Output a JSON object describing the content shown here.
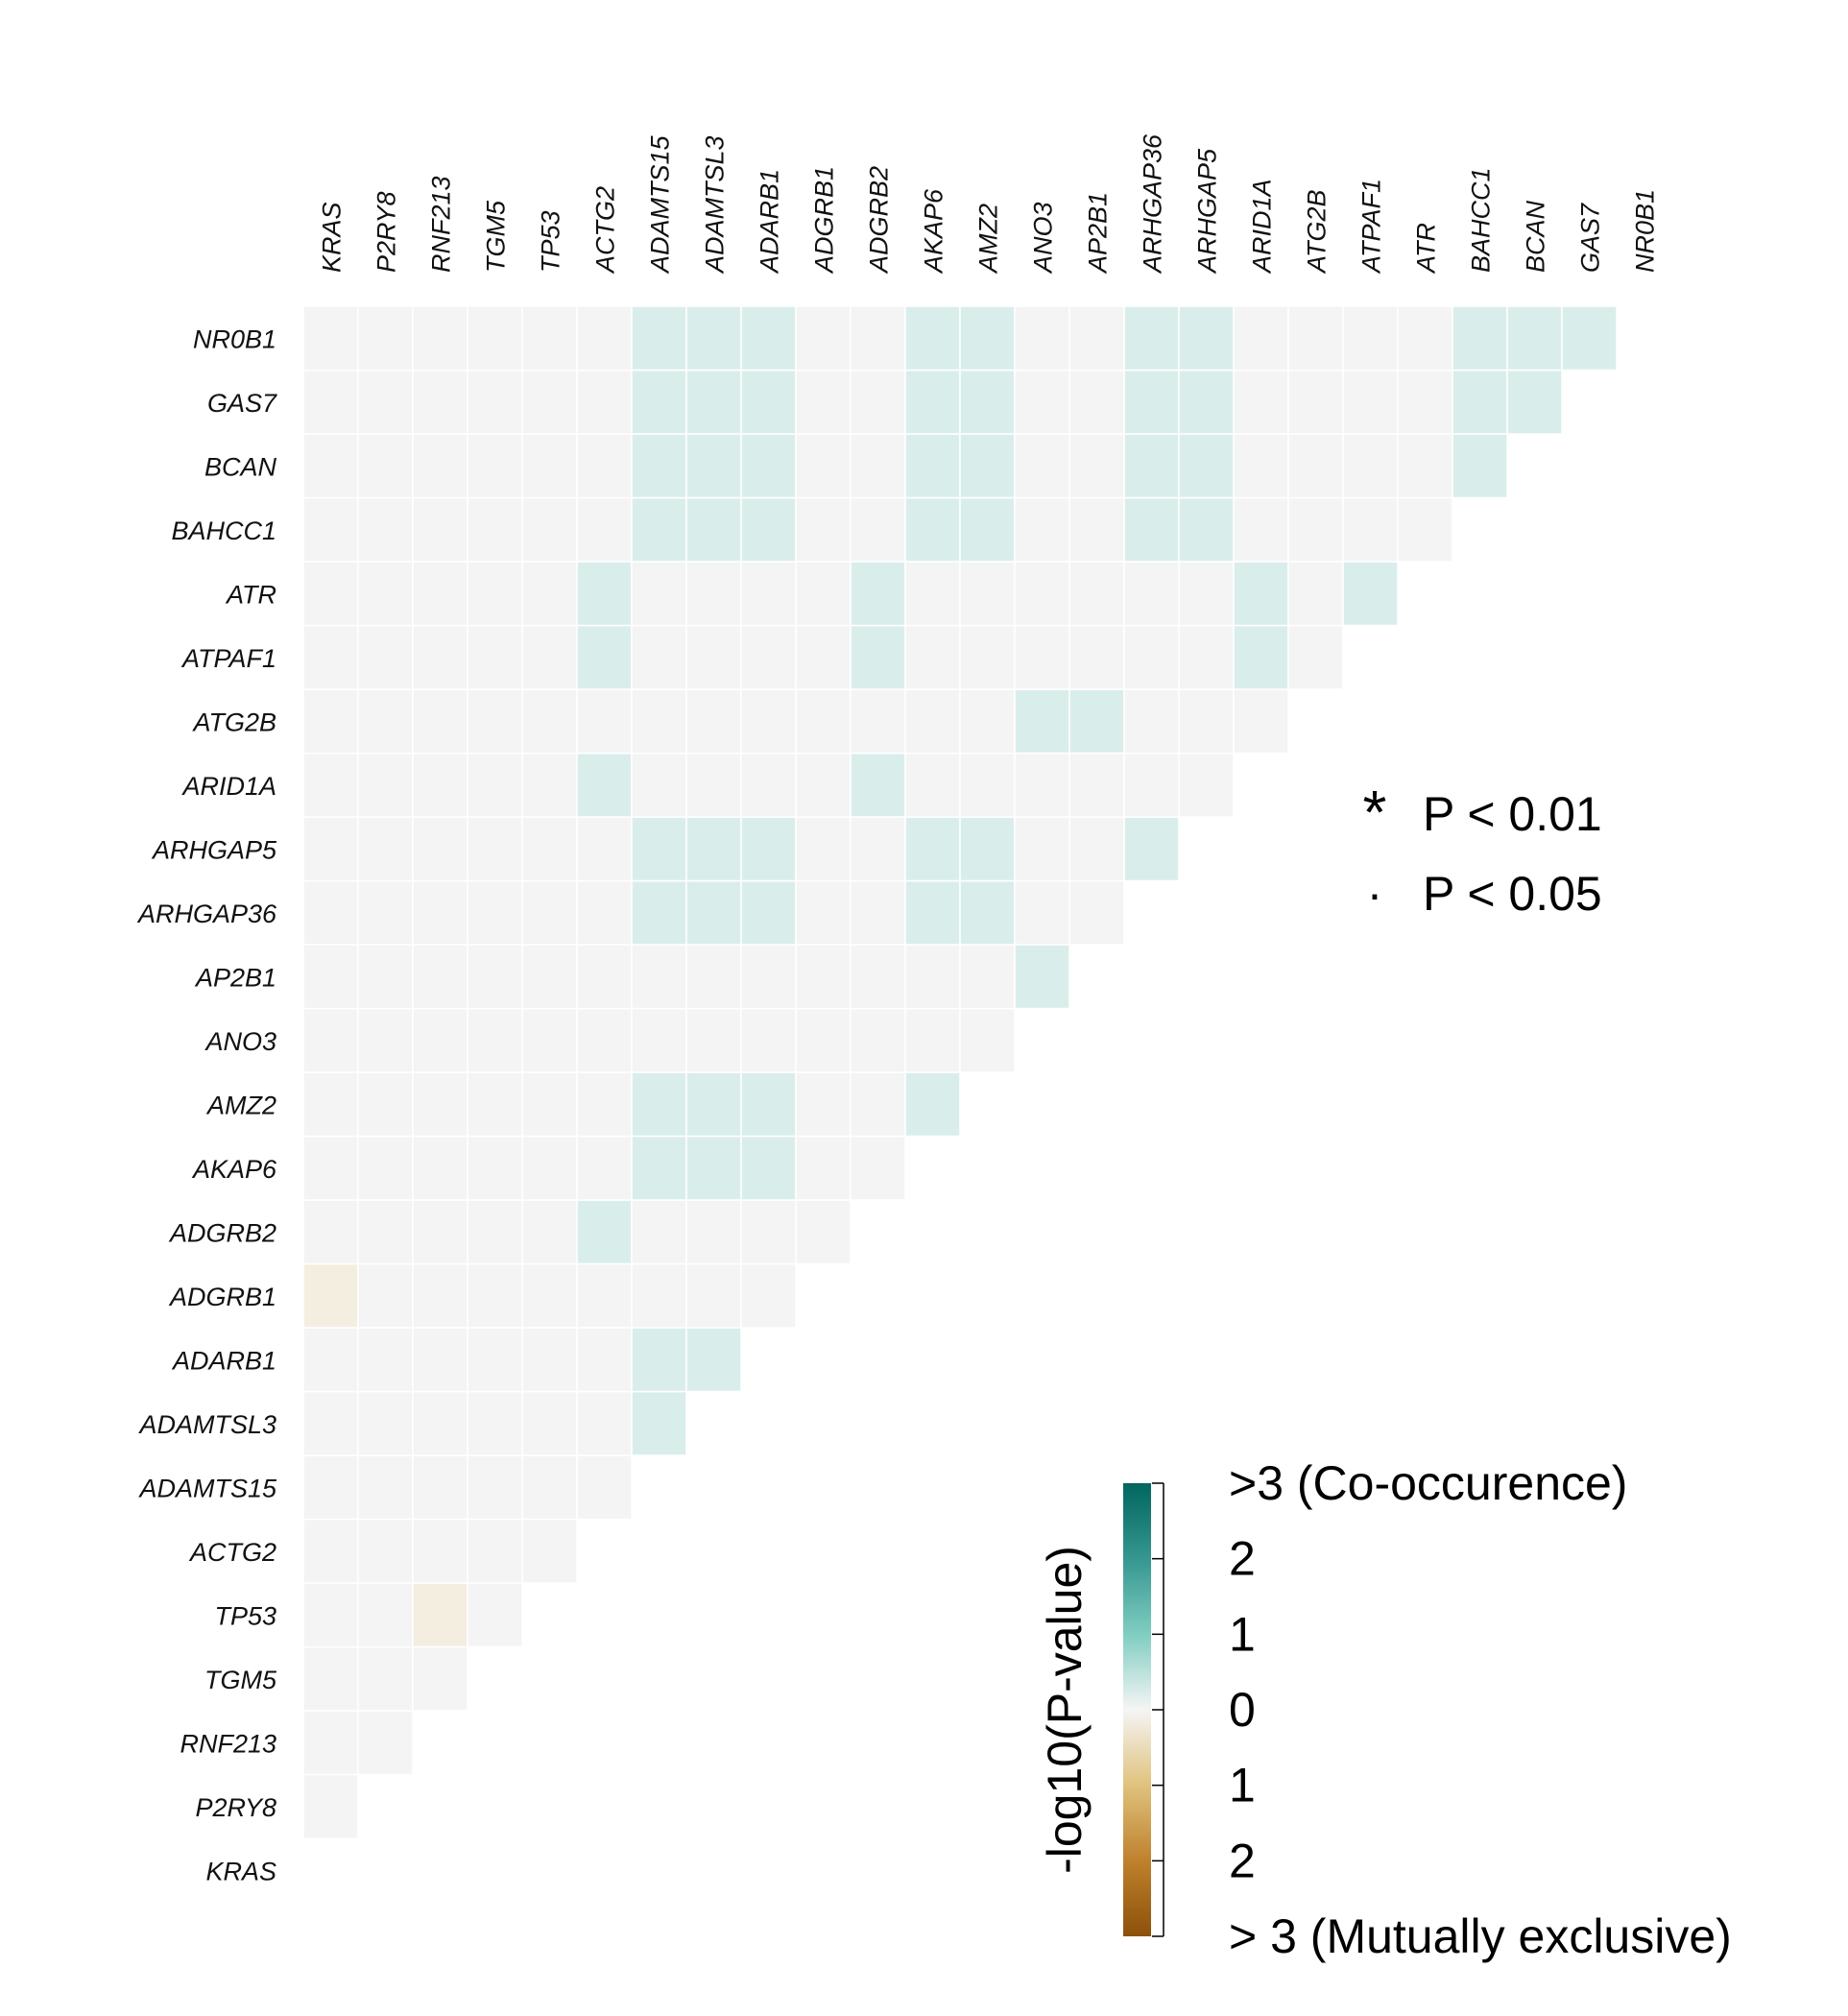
{
  "chart_data": {
    "type": "heatmap",
    "title": "",
    "genes": [
      "KRAS",
      "P2RY8",
      "RNF213",
      "TGM5",
      "TP53",
      "ACTG2",
      "ADAMTS15",
      "ADAMTSL3",
      "ADARB1",
      "ADGRB1",
      "ADGRB2",
      "AKAP6",
      "AMZ2",
      "ANO3",
      "AP2B1",
      "ARHGAP36",
      "ARHGAP5",
      "ARID1A",
      "ATG2B",
      "ATPAF1",
      "ATR",
      "BAHCC1",
      "BCAN",
      "GAS7",
      "NR0B1"
    ],
    "x_order": [
      "KRAS",
      "P2RY8",
      "RNF213",
      "TGM5",
      "TP53",
      "ACTG2",
      "ADAMTS15",
      "ADAMTSL3",
      "ADARB1",
      "ADGRB1",
      "ADGRB2",
      "AKAP6",
      "AMZ2",
      "ANO3",
      "AP2B1",
      "ARHGAP36",
      "ARHGAP5",
      "ARID1A",
      "ATG2B",
      "ATPAF1",
      "ATR",
      "BAHCC1",
      "BCAN",
      "GAS7",
      "NR0B1"
    ],
    "y_order_top_to_bottom": [
      "NR0B1",
      "GAS7",
      "BCAN",
      "BAHCC1",
      "ATR",
      "ATPAF1",
      "ATG2B",
      "ARID1A",
      "ARHGAP5",
      "ARHGAP36",
      "AP2B1",
      "ANO3",
      "AMZ2",
      "AKAP6",
      "ADGRB2",
      "ADGRB1",
      "ADARB1",
      "ADAMTSL3",
      "ADAMTS15",
      "ACTG2",
      "TP53",
      "TGM5",
      "RNF213",
      "P2RY8",
      "KRAS"
    ],
    "value_semantics": "signed -log10(P-value); positive = co-occurrence, negative = mutual exclusivity",
    "matrix": [
      [
        0,
        0,
        0,
        0,
        0,
        0,
        0,
        0,
        0,
        0,
        0,
        0,
        0,
        0,
        0,
        0,
        0,
        0,
        0,
        0,
        0,
        0,
        0,
        0,
        0
      ],
      [
        0,
        0,
        0,
        0,
        0,
        0,
        0,
        0,
        0,
        0,
        0,
        0,
        0,
        0,
        0,
        0,
        0,
        0,
        0,
        0,
        0,
        0,
        0,
        0,
        0
      ],
      [
        0,
        0,
        0,
        0,
        0,
        0,
        0,
        0,
        0,
        0,
        0,
        0,
        0,
        0,
        0,
        0,
        0,
        0,
        0,
        0,
        0,
        0,
        0,
        0,
        0
      ],
      [
        0,
        0,
        0,
        0,
        0,
        0,
        0,
        0,
        0,
        0,
        0,
        0,
        0,
        0,
        0,
        0,
        0,
        0,
        0,
        0,
        0,
        0,
        0,
        0,
        0
      ],
      [
        0,
        0,
        -0.4,
        0,
        0,
        0,
        0,
        0,
        0,
        0,
        0,
        0,
        0,
        0,
        0,
        0,
        0,
        0,
        0,
        0,
        0,
        0,
        0,
        0,
        0
      ],
      [
        0,
        0,
        0,
        0,
        0,
        0,
        0,
        0,
        0,
        0,
        0,
        0,
        0,
        0,
        0,
        0,
        0,
        0,
        0,
        0,
        0,
        0,
        0,
        0,
        0
      ],
      [
        0,
        0,
        0,
        0,
        0,
        0,
        0,
        0,
        0,
        0,
        0,
        0,
        0,
        0,
        0,
        0,
        0,
        0,
        0,
        0,
        0,
        0,
        0,
        0,
        0
      ],
      [
        0,
        0,
        0,
        0,
        0,
        0,
        0.6,
        0,
        0,
        0,
        0,
        0,
        0,
        0,
        0,
        0,
        0,
        0,
        0,
        0,
        0,
        0,
        0,
        0,
        0
      ],
      [
        0,
        0,
        0,
        0,
        0,
        0,
        0.6,
        0.6,
        0,
        0,
        0,
        0,
        0,
        0,
        0,
        0,
        0,
        0,
        0,
        0,
        0,
        0,
        0,
        0,
        0
      ],
      [
        -0.4,
        0,
        0,
        0,
        0,
        0,
        0,
        0,
        0,
        0,
        0,
        0,
        0,
        0,
        0,
        0,
        0,
        0,
        0,
        0,
        0,
        0,
        0,
        0,
        0
      ],
      [
        0,
        0,
        0,
        0,
        0,
        0.6,
        0,
        0,
        0,
        0,
        0,
        0,
        0,
        0,
        0,
        0,
        0,
        0,
        0,
        0,
        0,
        0,
        0,
        0,
        0
      ],
      [
        0,
        0,
        0,
        0,
        0,
        0,
        0.6,
        0.6,
        0.6,
        0,
        0,
        0,
        0,
        0,
        0,
        0,
        0,
        0,
        0,
        0,
        0,
        0,
        0,
        0,
        0
      ],
      [
        0,
        0,
        0,
        0,
        0,
        0,
        0.6,
        0.6,
        0.6,
        0,
        0,
        0.6,
        0,
        0,
        0,
        0,
        0,
        0,
        0,
        0,
        0,
        0,
        0,
        0,
        0
      ],
      [
        0,
        0,
        0,
        0,
        0,
        0,
        0,
        0,
        0,
        0,
        0,
        0,
        0,
        0,
        0,
        0,
        0,
        0,
        0,
        0,
        0,
        0,
        0,
        0,
        0
      ],
      [
        0,
        0,
        0,
        0,
        0,
        0,
        0,
        0,
        0,
        0,
        0,
        0,
        0,
        0.6,
        0,
        0,
        0,
        0,
        0,
        0,
        0,
        0,
        0,
        0,
        0
      ],
      [
        0,
        0,
        0,
        0,
        0,
        0,
        0.6,
        0.6,
        0.6,
        0,
        0,
        0.6,
        0.6,
        0,
        0,
        0,
        0,
        0,
        0,
        0,
        0,
        0,
        0,
        0,
        0
      ],
      [
        0,
        0,
        0,
        0,
        0,
        0,
        0.6,
        0.6,
        0.6,
        0,
        0,
        0.6,
        0.6,
        0,
        0,
        0.6,
        0,
        0,
        0,
        0,
        0,
        0,
        0,
        0,
        0
      ],
      [
        0,
        0,
        0,
        0,
        0,
        0.6,
        0,
        0,
        0,
        0,
        0.6,
        0,
        0,
        0,
        0,
        0,
        0,
        0,
        0,
        0,
        0,
        0,
        0,
        0,
        0
      ],
      [
        0,
        0,
        0,
        0,
        0,
        0,
        0,
        0,
        0,
        0,
        0,
        0,
        0,
        0.6,
        0.6,
        0,
        0,
        0,
        0,
        0,
        0,
        0,
        0,
        0,
        0
      ],
      [
        0,
        0,
        0,
        0,
        0,
        0.6,
        0,
        0,
        0,
        0,
        0.6,
        0,
        0,
        0,
        0,
        0,
        0,
        0.6,
        0,
        0,
        0,
        0,
        0,
        0,
        0
      ],
      [
        0,
        0,
        0,
        0,
        0,
        0.6,
        0,
        0,
        0,
        0,
        0.6,
        0,
        0,
        0,
        0,
        0,
        0,
        0.6,
        0,
        0.6,
        0,
        0,
        0,
        0,
        0
      ],
      [
        0,
        0,
        0,
        0,
        0,
        0,
        0.6,
        0.6,
        0.6,
        0,
        0,
        0.6,
        0.6,
        0,
        0,
        0.6,
        0.6,
        0,
        0,
        0,
        0,
        0,
        0,
        0,
        0
      ],
      [
        0,
        0,
        0,
        0,
        0,
        0,
        0.6,
        0.6,
        0.6,
        0,
        0,
        0.6,
        0.6,
        0,
        0,
        0.6,
        0.6,
        0,
        0,
        0,
        0,
        0.6,
        0,
        0,
        0
      ],
      [
        0,
        0,
        0,
        0,
        0,
        0,
        0.6,
        0.6,
        0.6,
        0,
        0,
        0.6,
        0.6,
        0,
        0,
        0.6,
        0.6,
        0,
        0,
        0,
        0,
        0.6,
        0.6,
        0,
        0
      ],
      [
        0,
        0,
        0,
        0,
        0,
        0,
        0.6,
        0.6,
        0.6,
        0,
        0,
        0.6,
        0.6,
        0,
        0,
        0.6,
        0.6,
        0,
        0,
        0,
        0,
        0.6,
        0.6,
        0.6,
        0
      ]
    ],
    "significance_legend": [
      {
        "symbol": "*",
        "label": "P < 0.01"
      },
      {
        "symbol": "·",
        "label": "P < 0.05"
      }
    ],
    "colorbar": {
      "title": "-log10(P-value)",
      "ticks": [
        {
          "value": 3,
          "label": ">3 (Co-occurence)"
        },
        {
          "value": 2,
          "label": "2"
        },
        {
          "value": 1,
          "label": "1"
        },
        {
          "value": 0,
          "label": "0"
        },
        {
          "value": -1,
          "label": "1"
        },
        {
          "value": -2,
          "label": "2"
        },
        {
          "value": -3,
          "label": "> 3 (Mutually exclusive)"
        }
      ],
      "range": [
        -3,
        3
      ]
    },
    "colors": {
      "zero": "#f4f4f4",
      "co_occurrence_scale": [
        "#f5f5f5",
        "#d2ece7",
        "#80cdc1",
        "#35978f",
        "#01665e"
      ],
      "exclusive_scale": [
        "#f5f5f5",
        "#f3e8cf",
        "#dfc27d",
        "#bf812d",
        "#8c510a"
      ],
      "cell_border": "#ffffff"
    }
  }
}
